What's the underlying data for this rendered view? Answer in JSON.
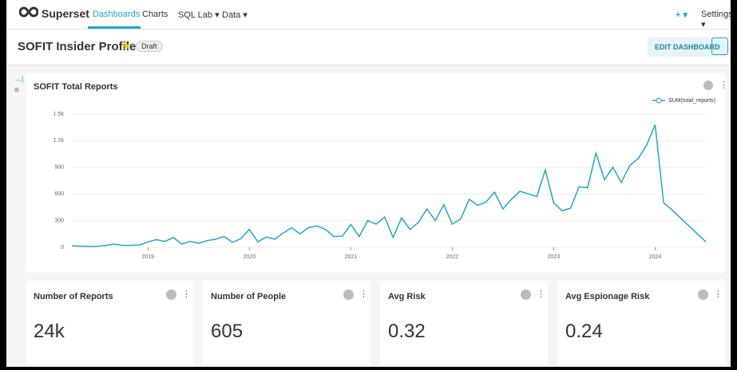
{
  "nav": {
    "brand": "Superset",
    "items": [
      "Dashboards",
      "Charts",
      "SQL Lab ▾",
      "Data ▾"
    ],
    "right": [
      "+ ▾",
      "Settings ▾"
    ]
  },
  "header": {
    "title": "SOFIT Insider Profile",
    "status": "Draft",
    "edit_button": "EDIT DASHBOARD",
    "more_button": "···"
  },
  "chart_data": {
    "type": "line",
    "title": "SOFIT Total Reports",
    "categories": [
      null,
      null,
      null,
      null,
      null,
      null,
      null,
      null,
      null,
      "2019",
      null,
      null,
      null,
      null,
      null,
      null,
      null,
      null,
      null,
      null,
      null,
      "2020",
      null,
      null,
      null,
      null,
      null,
      null,
      null,
      null,
      null,
      null,
      null,
      "2021",
      null,
      null,
      null,
      null,
      null,
      null,
      null,
      null,
      null,
      null,
      null,
      "2022",
      null,
      null,
      null,
      null,
      null,
      null,
      null,
      null,
      null,
      null,
      null,
      "2023",
      null,
      null,
      null,
      null,
      null,
      null,
      null,
      null,
      null,
      null,
      null,
      "2024",
      null,
      null,
      null,
      null,
      null,
      null
    ],
    "series": [
      {
        "name": "SUM(total_reports)",
        "color": "#20a7c9",
        "values": [
          15,
          12,
          8,
          10,
          20,
          35,
          20,
          22,
          25,
          60,
          85,
          65,
          110,
          35,
          65,
          45,
          75,
          90,
          120,
          55,
          95,
          200,
          60,
          115,
          90,
          160,
          220,
          150,
          220,
          240,
          200,
          120,
          125,
          255,
          120,
          300,
          260,
          340,
          110,
          330,
          200,
          280,
          430,
          300,
          480,
          260,
          320,
          540,
          470,
          510,
          620,
          430,
          540,
          630,
          600,
          570,
          870,
          500,
          410,
          440,
          680,
          670,
          1060,
          760,
          900,
          730,
          920,
          1000,
          1150,
          1380,
          500,
          420,
          330,
          240,
          150,
          60
        ]
      }
    ],
    "ylim": [
      0,
      1500
    ],
    "yticks": [
      0,
      300,
      600,
      900,
      {
        "value": 1200,
        "label": "1.2k"
      },
      {
        "value": 1500,
        "label": "1.5k"
      }
    ],
    "grid": true,
    "legend": "top-right"
  },
  "cards": [
    {
      "title": "Number of Reports",
      "value": "24k"
    },
    {
      "title": "Number of People",
      "value": "605"
    },
    {
      "title": "Avg Risk",
      "value": "0.32"
    },
    {
      "title": "Avg Espionage Risk",
      "value": "0.24"
    }
  ]
}
